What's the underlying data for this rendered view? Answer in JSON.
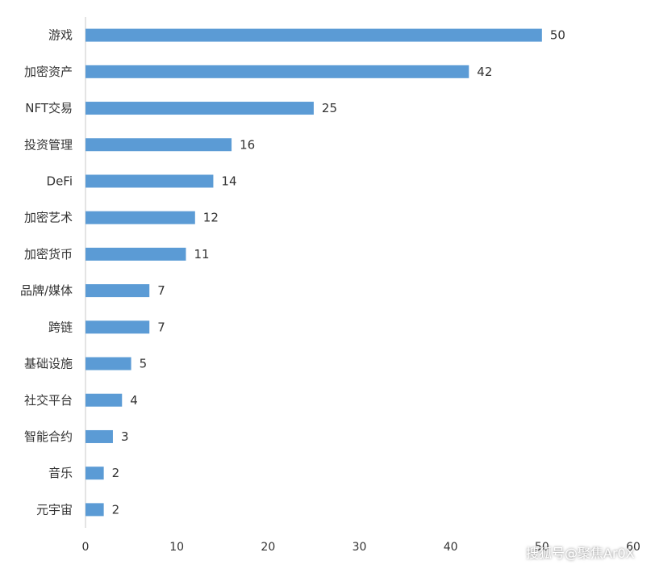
{
  "chart_data": {
    "type": "bar",
    "orientation": "horizontal",
    "categories": [
      "游戏",
      "加密资产",
      "NFT交易",
      "投资管理",
      "DeFi",
      "加密艺术",
      "加密货币",
      "品牌/媒体",
      "跨链",
      "基础设施",
      "社交平台",
      "智能合约",
      "音乐",
      "元宇宙"
    ],
    "values": [
      50,
      42,
      25,
      16,
      14,
      12,
      11,
      7,
      7,
      5,
      4,
      3,
      2,
      2
    ],
    "xlim": [
      0,
      60
    ],
    "xticks": [
      0,
      10,
      20,
      30,
      40,
      50,
      60
    ],
    "grid": false,
    "bar_color": "#5B9BD5",
    "data_labels": true
  },
  "watermark": "搜狐号@聚焦Ar0X"
}
